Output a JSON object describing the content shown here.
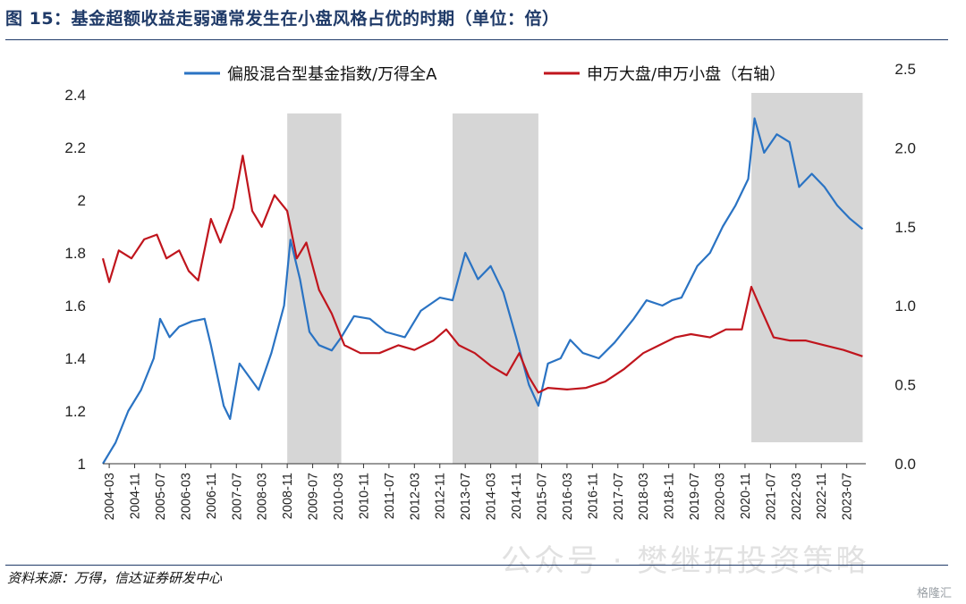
{
  "title": "图 15：基金超额收益走弱通常发生在小盘风格占优的时期（单位：倍）",
  "source": "资料来源：万得，信达证券研发中心",
  "watermark": "公众号 · 樊继拓投资策略",
  "corner_logo": "格隆汇",
  "colors": {
    "fund": "#2a73c3",
    "ratio": "#c0151d",
    "shade": "#d6d6d6",
    "title": "#1f3a68"
  },
  "chart_data": {
    "type": "line",
    "title": "",
    "legend_placement": "top",
    "x_tick_labels": [
      "2004-03",
      "2004-11",
      "2005-07",
      "2006-03",
      "2006-11",
      "2007-07",
      "2008-03",
      "2008-11",
      "2009-07",
      "2010-03",
      "2010-11",
      "2011-07",
      "2012-03",
      "2012-11",
      "2013-07",
      "2014-03",
      "2014-11",
      "2015-07",
      "2016-03",
      "2016-11",
      "2017-07",
      "2018-03",
      "2018-11",
      "2019-07",
      "2020-03",
      "2020-11",
      "2021-07",
      "2022-03",
      "2022-11",
      "2023-07"
    ],
    "x_range": [
      "2004-01",
      "2023-12"
    ],
    "y_left": {
      "min": 1.0,
      "max": 2.4,
      "ticks": [
        1,
        1.2,
        1.4,
        1.6,
        1.8,
        2,
        2.2,
        2.4
      ],
      "tick_labels": [
        "1",
        "1.2",
        "1.4",
        "1.6",
        "1.8",
        "2",
        "2.2",
        "2.4"
      ]
    },
    "y_right": {
      "min": 0.0,
      "max": 2.5,
      "ticks": [
        0.0,
        0.5,
        1.0,
        1.5,
        2.0,
        2.5
      ],
      "tick_labels": [
        "0.0",
        "0.5",
        "1.0",
        "1.5",
        "2.0",
        "2.5"
      ]
    },
    "shaded_periods": [
      {
        "start": "2008-11",
        "end": "2010-04"
      },
      {
        "start": "2013-03",
        "end": "2015-06"
      },
      {
        "start": "2021-01",
        "end": "2023-12"
      }
    ],
    "series": [
      {
        "name": "偏股混合型基金指数/万得全A",
        "axis": "left",
        "color": "#2a73c3",
        "points": [
          [
            "2004-01",
            1.0
          ],
          [
            "2004-05",
            1.08
          ],
          [
            "2004-09",
            1.2
          ],
          [
            "2005-01",
            1.28
          ],
          [
            "2005-05",
            1.4
          ],
          [
            "2005-07",
            1.55
          ],
          [
            "2005-10",
            1.48
          ],
          [
            "2006-01",
            1.52
          ],
          [
            "2006-05",
            1.54
          ],
          [
            "2006-09",
            1.55
          ],
          [
            "2006-11",
            1.45
          ],
          [
            "2007-03",
            1.22
          ],
          [
            "2007-05",
            1.17
          ],
          [
            "2007-08",
            1.38
          ],
          [
            "2007-11",
            1.33
          ],
          [
            "2008-02",
            1.28
          ],
          [
            "2008-06",
            1.42
          ],
          [
            "2008-10",
            1.6
          ],
          [
            "2008-12",
            1.85
          ],
          [
            "2009-03",
            1.7
          ],
          [
            "2009-06",
            1.5
          ],
          [
            "2009-09",
            1.45
          ],
          [
            "2010-01",
            1.43
          ],
          [
            "2010-04",
            1.48
          ],
          [
            "2010-08",
            1.56
          ],
          [
            "2011-01",
            1.55
          ],
          [
            "2011-06",
            1.5
          ],
          [
            "2011-12",
            1.48
          ],
          [
            "2012-05",
            1.58
          ],
          [
            "2012-11",
            1.63
          ],
          [
            "2013-03",
            1.62
          ],
          [
            "2013-07",
            1.8
          ],
          [
            "2013-11",
            1.7
          ],
          [
            "2014-03",
            1.75
          ],
          [
            "2014-07",
            1.65
          ],
          [
            "2014-11",
            1.48
          ],
          [
            "2015-03",
            1.3
          ],
          [
            "2015-06",
            1.22
          ],
          [
            "2015-09",
            1.38
          ],
          [
            "2016-01",
            1.4
          ],
          [
            "2016-04",
            1.47
          ],
          [
            "2016-08",
            1.42
          ],
          [
            "2017-01",
            1.4
          ],
          [
            "2017-06",
            1.46
          ],
          [
            "2017-12",
            1.55
          ],
          [
            "2018-04",
            1.62
          ],
          [
            "2018-09",
            1.6
          ],
          [
            "2018-12",
            1.62
          ],
          [
            "2019-03",
            1.63
          ],
          [
            "2019-08",
            1.75
          ],
          [
            "2019-12",
            1.8
          ],
          [
            "2020-04",
            1.9
          ],
          [
            "2020-08",
            1.98
          ],
          [
            "2020-12",
            2.08
          ],
          [
            "2021-02",
            2.31
          ],
          [
            "2021-05",
            2.18
          ],
          [
            "2021-09",
            2.25
          ],
          [
            "2022-01",
            2.22
          ],
          [
            "2022-04",
            2.05
          ],
          [
            "2022-08",
            2.1
          ],
          [
            "2022-12",
            2.05
          ],
          [
            "2023-04",
            1.98
          ],
          [
            "2023-08",
            1.93
          ],
          [
            "2023-12",
            1.89
          ]
        ]
      },
      {
        "name": "申万大盘/申万小盘（右轴）",
        "axis": "right",
        "color": "#c0151d",
        "points": [
          [
            "2004-01",
            1.3
          ],
          [
            "2004-03",
            1.15
          ],
          [
            "2004-06",
            1.35
          ],
          [
            "2004-10",
            1.3
          ],
          [
            "2005-02",
            1.42
          ],
          [
            "2005-06",
            1.45
          ],
          [
            "2005-09",
            1.3
          ],
          [
            "2006-01",
            1.35
          ],
          [
            "2006-04",
            1.22
          ],
          [
            "2006-07",
            1.16
          ],
          [
            "2006-11",
            1.55
          ],
          [
            "2007-02",
            1.4
          ],
          [
            "2007-06",
            1.62
          ],
          [
            "2007-09",
            1.95
          ],
          [
            "2007-12",
            1.6
          ],
          [
            "2008-03",
            1.5
          ],
          [
            "2008-07",
            1.7
          ],
          [
            "2008-11",
            1.6
          ],
          [
            "2009-02",
            1.3
          ],
          [
            "2009-05",
            1.4
          ],
          [
            "2009-09",
            1.1
          ],
          [
            "2010-01",
            0.95
          ],
          [
            "2010-05",
            0.75
          ],
          [
            "2010-10",
            0.7
          ],
          [
            "2011-04",
            0.7
          ],
          [
            "2011-10",
            0.75
          ],
          [
            "2012-03",
            0.72
          ],
          [
            "2012-09",
            0.78
          ],
          [
            "2013-01",
            0.85
          ],
          [
            "2013-05",
            0.75
          ],
          [
            "2013-10",
            0.7
          ],
          [
            "2014-03",
            0.62
          ],
          [
            "2014-08",
            0.56
          ],
          [
            "2014-12",
            0.7
          ],
          [
            "2015-03",
            0.55
          ],
          [
            "2015-06",
            0.45
          ],
          [
            "2015-09",
            0.48
          ],
          [
            "2016-03",
            0.47
          ],
          [
            "2016-09",
            0.48
          ],
          [
            "2017-03",
            0.52
          ],
          [
            "2017-09",
            0.6
          ],
          [
            "2018-03",
            0.7
          ],
          [
            "2018-08",
            0.75
          ],
          [
            "2019-01",
            0.8
          ],
          [
            "2019-06",
            0.82
          ],
          [
            "2019-12",
            0.8
          ],
          [
            "2020-05",
            0.85
          ],
          [
            "2020-10",
            0.85
          ],
          [
            "2021-01",
            1.12
          ],
          [
            "2021-04",
            0.98
          ],
          [
            "2021-08",
            0.8
          ],
          [
            "2022-01",
            0.78
          ],
          [
            "2022-06",
            0.78
          ],
          [
            "2022-12",
            0.75
          ],
          [
            "2023-06",
            0.72
          ],
          [
            "2023-12",
            0.68
          ]
        ]
      }
    ]
  }
}
